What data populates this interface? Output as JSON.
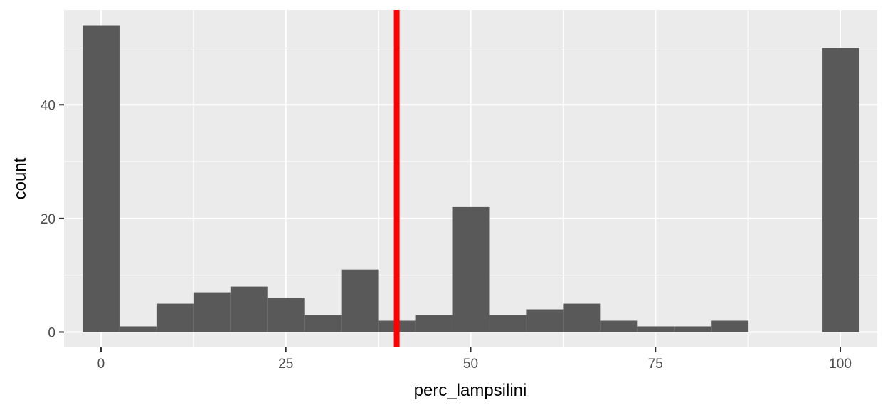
{
  "chart_data": {
    "type": "bar",
    "subtype": "histogram",
    "title": "",
    "xlabel": "perc_lampsilini",
    "ylabel": "count",
    "xlim": [
      -5,
      105
    ],
    "ylim": [
      -2.7,
      56.7
    ],
    "x_ticks": [
      0,
      25,
      50,
      75,
      100
    ],
    "x_tick_labels": [
      "0",
      "25",
      "50",
      "75",
      "100"
    ],
    "y_ticks": [
      0,
      20,
      40
    ],
    "y_tick_labels": [
      "0",
      "20",
      "40"
    ],
    "grid": true,
    "legend": "none",
    "bin_width": 5,
    "bins": [
      {
        "center": 0,
        "count": 54
      },
      {
        "center": 5,
        "count": 1
      },
      {
        "center": 10,
        "count": 5
      },
      {
        "center": 15,
        "count": 7
      },
      {
        "center": 20,
        "count": 8
      },
      {
        "center": 25,
        "count": 6
      },
      {
        "center": 30,
        "count": 3
      },
      {
        "center": 35,
        "count": 11
      },
      {
        "center": 40,
        "count": 2
      },
      {
        "center": 45,
        "count": 3
      },
      {
        "center": 50,
        "count": 22
      },
      {
        "center": 55,
        "count": 3
      },
      {
        "center": 60,
        "count": 4
      },
      {
        "center": 65,
        "count": 5
      },
      {
        "center": 70,
        "count": 2
      },
      {
        "center": 75,
        "count": 1
      },
      {
        "center": 80,
        "count": 1
      },
      {
        "center": 85,
        "count": 2
      },
      {
        "center": 90,
        "count": 0
      },
      {
        "center": 95,
        "count": 0
      },
      {
        "center": 100,
        "count": 50
      }
    ],
    "reference_line": {
      "orientation": "vertical",
      "x": 40,
      "color": "#ff0000"
    },
    "colors": {
      "bar_fill": "#595959",
      "panel_background": "#ebebeb",
      "grid_major": "#ffffff",
      "tick_label": "#4d4d4d",
      "axis_title": "#000000"
    }
  }
}
